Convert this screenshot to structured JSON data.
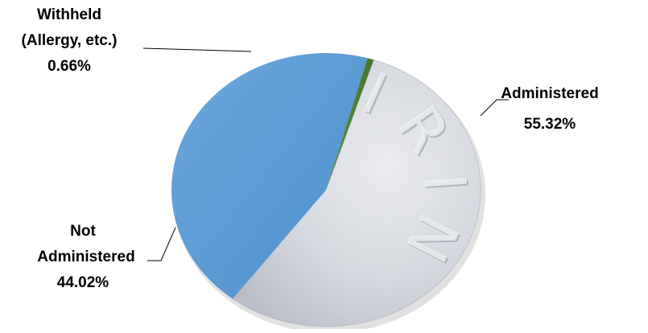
{
  "chart_data": {
    "type": "pie",
    "title": "",
    "slices": [
      {
        "key": "administered",
        "label_lines": [
          "Administered"
        ],
        "pct_text": "55.32%",
        "value": 55.32,
        "color": "#cfd3dc",
        "texture": "aspirin-tablet"
      },
      {
        "key": "not-administered",
        "label_lines": [
          "Not",
          "Administered"
        ],
        "pct_text": "44.02%",
        "value": 44.02,
        "color": "#5b9bd5"
      },
      {
        "key": "withheld",
        "label_lines": [
          "Withheld",
          "(Allergy, etc.)"
        ],
        "pct_text": "0.66%",
        "value": 0.66,
        "color": "#548235"
      }
    ],
    "legend": "none",
    "embossed_text": "SPIRIN"
  }
}
